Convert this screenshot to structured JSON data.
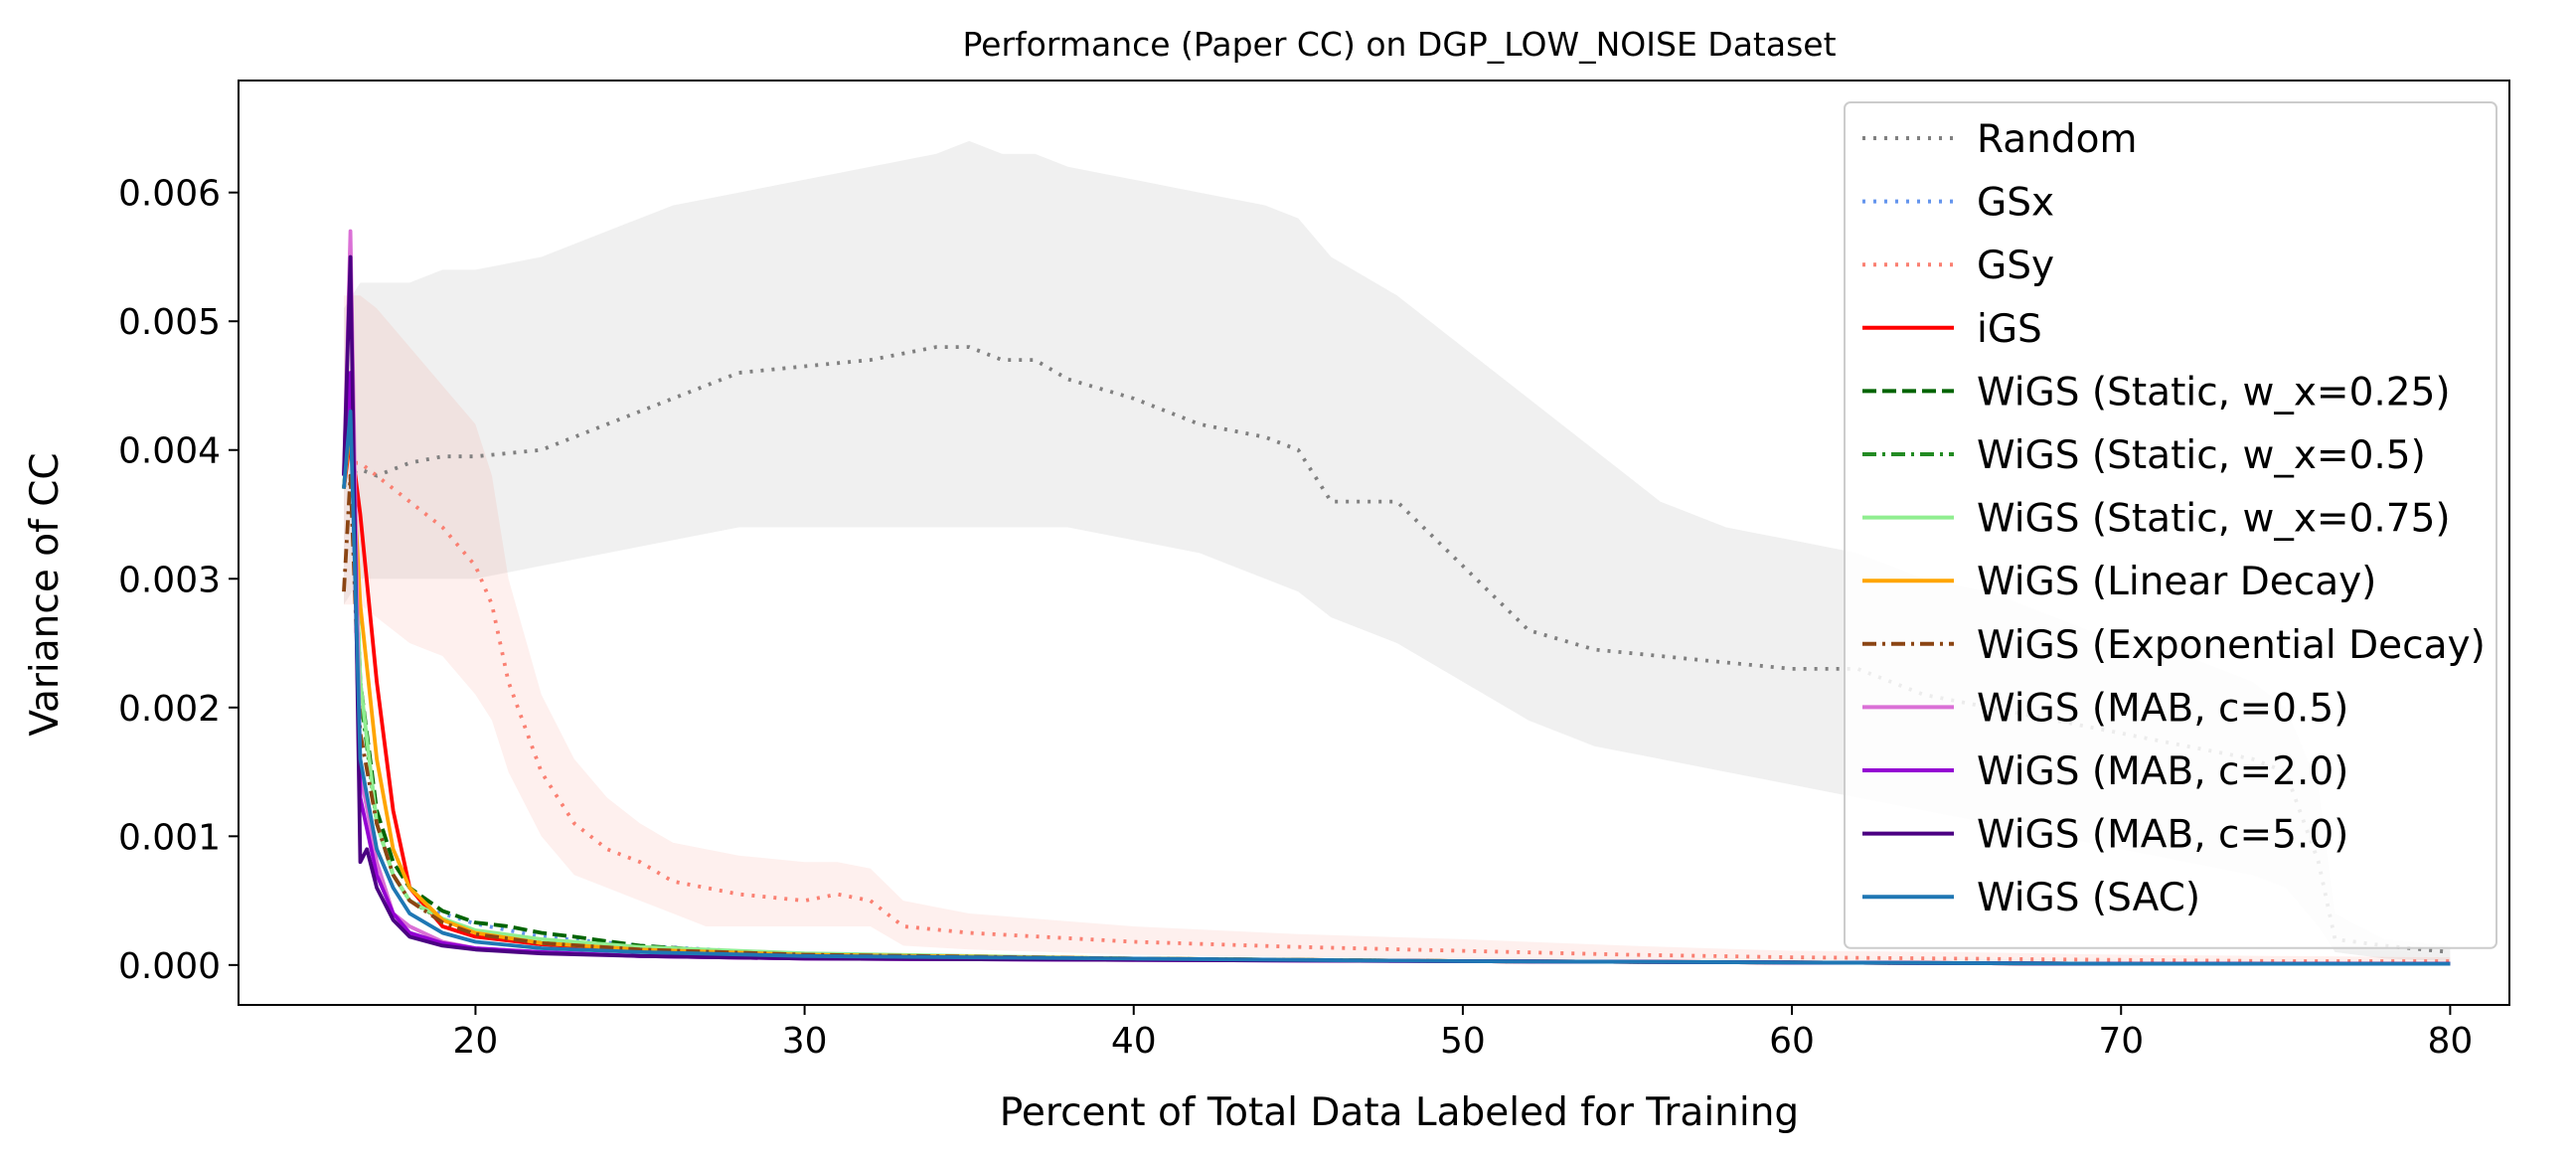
{
  "chart_data": {
    "type": "line",
    "title": "Performance (Paper CC) on DGP_LOW_NOISE Dataset",
    "xlabel": "Percent of Total Data Labeled for Training",
    "ylabel": "Variance of CC",
    "xlim": [
      12.8,
      81.8
    ],
    "ylim": [
      -0.00031,
      0.00687
    ],
    "xticks": [
      20,
      30,
      40,
      50,
      60,
      70,
      80
    ],
    "yticks": [
      0.0,
      0.001,
      0.002,
      0.003,
      0.004,
      0.005,
      0.006
    ],
    "ytick_labels": [
      "0.000",
      "0.001",
      "0.002",
      "0.003",
      "0.004",
      "0.005",
      "0.006"
    ],
    "grid": false,
    "legend_position": "upper right",
    "series": [
      {
        "name": "Random",
        "color": "#808080",
        "style": "dotted",
        "x": [
          16,
          16.5,
          17,
          18,
          19,
          20,
          22,
          24,
          26,
          28,
          30,
          32,
          34,
          35,
          36,
          37,
          38,
          40,
          42,
          44,
          45,
          46,
          48,
          50,
          52,
          54,
          56,
          58,
          60,
          62,
          64,
          66,
          68,
          70,
          72,
          74,
          75,
          76,
          76.5,
          78,
          80
        ],
        "values": [
          0.0038,
          0.00385,
          0.0038,
          0.0039,
          0.00395,
          0.00395,
          0.004,
          0.0042,
          0.0044,
          0.0046,
          0.00465,
          0.0047,
          0.0048,
          0.0048,
          0.0047,
          0.0047,
          0.00455,
          0.0044,
          0.0042,
          0.0041,
          0.004,
          0.0036,
          0.0036,
          0.0031,
          0.0026,
          0.00245,
          0.0024,
          0.00235,
          0.0023,
          0.0023,
          0.0021,
          0.002,
          0.0019,
          0.0018,
          0.0017,
          0.0016,
          0.0015,
          0.0008,
          0.0002,
          0.00015,
          0.0001
        ],
        "band_upper": [
          0.0051,
          0.0053,
          0.0053,
          0.0053,
          0.0054,
          0.0054,
          0.0055,
          0.0057,
          0.0059,
          0.006,
          0.0061,
          0.0062,
          0.0063,
          0.0064,
          0.0063,
          0.0063,
          0.0062,
          0.0061,
          0.006,
          0.0059,
          0.0058,
          0.0055,
          0.0052,
          0.0048,
          0.0044,
          0.004,
          0.0036,
          0.0034,
          0.0033,
          0.0032,
          0.003,
          0.0029,
          0.0027,
          0.0025,
          0.0024,
          0.0022,
          0.002,
          0.0014,
          0.0004,
          0.0002,
          0.00015
        ],
        "band_lower": [
          0.0028,
          0.003,
          0.003,
          0.003,
          0.003,
          0.003,
          0.0031,
          0.0032,
          0.0033,
          0.0034,
          0.0034,
          0.0034,
          0.0034,
          0.0034,
          0.0034,
          0.0034,
          0.0034,
          0.0033,
          0.0032,
          0.003,
          0.0029,
          0.0027,
          0.0025,
          0.0022,
          0.0019,
          0.0017,
          0.0016,
          0.0015,
          0.0014,
          0.0013,
          0.0012,
          0.0011,
          0.001,
          0.0009,
          0.0008,
          0.0007,
          0.0006,
          0.0003,
          0.0001,
          5e-05,
          3e-05
        ]
      },
      {
        "name": "GSx",
        "color": "#6495ED",
        "style": "dotted",
        "x": [
          16,
          16.2,
          16.5,
          17,
          17.5,
          18,
          19,
          20,
          22,
          25,
          30,
          40,
          50,
          60,
          70,
          80
        ],
        "values": [
          0.0037,
          0.0042,
          0.0022,
          0.0011,
          0.0007,
          0.0005,
          0.0004,
          0.00032,
          0.00022,
          0.00015,
          8e-05,
          5e-05,
          3e-05,
          2e-05,
          1e-05,
          1e-05
        ]
      },
      {
        "name": "GSy",
        "color": "#FA8072",
        "style": "dotted",
        "x": [
          16,
          16.5,
          17,
          18,
          19,
          20,
          20.5,
          21,
          22,
          23,
          24,
          25,
          26,
          27,
          28,
          30,
          31,
          32,
          33,
          35,
          40,
          45,
          50,
          55,
          60,
          65,
          70,
          75,
          80
        ],
        "values": [
          0.0039,
          0.0039,
          0.0038,
          0.0036,
          0.0034,
          0.0031,
          0.0028,
          0.0022,
          0.0015,
          0.0011,
          0.0009,
          0.0008,
          0.00065,
          0.0006,
          0.00055,
          0.0005,
          0.00055,
          0.0005,
          0.0003,
          0.00025,
          0.00018,
          0.00014,
          0.00011,
          8e-05,
          6e-05,
          5e-05,
          4e-05,
          3e-05,
          3e-05
        ],
        "band_upper": [
          0.0052,
          0.0052,
          0.0051,
          0.0048,
          0.0045,
          0.0042,
          0.0038,
          0.003,
          0.0021,
          0.0016,
          0.0013,
          0.0011,
          0.00095,
          0.0009,
          0.00085,
          0.0008,
          0.0008,
          0.00075,
          0.0005,
          0.0004,
          0.0003,
          0.00024,
          0.0002,
          0.00015,
          0.00011,
          0.0001,
          8e-05,
          7e-05,
          6e-05
        ],
        "band_lower": [
          0.0028,
          0.0028,
          0.0027,
          0.0025,
          0.0024,
          0.0021,
          0.0019,
          0.0015,
          0.001,
          0.0007,
          0.0006,
          0.0005,
          0.0004,
          0.0003,
          0.0003,
          0.0003,
          0.0003,
          0.0003,
          0.00015,
          0.00012,
          8e-05,
          6e-05,
          4e-05,
          3e-05,
          2e-05,
          2e-05,
          1e-05,
          1e-05,
          1e-05
        ]
      },
      {
        "name": "iGS",
        "color": "#FF0000",
        "style": "solid",
        "x": [
          16,
          16.2,
          16.5,
          17,
          17.5,
          18,
          19,
          20,
          22,
          25,
          30,
          40,
          50,
          60,
          70,
          80
        ],
        "values": [
          0.0037,
          0.0041,
          0.0035,
          0.0022,
          0.0012,
          0.0006,
          0.0003,
          0.00022,
          0.00016,
          0.00012,
          8e-05,
          5e-05,
          3e-05,
          2e-05,
          1e-05,
          1e-05
        ]
      },
      {
        "name": "WiGS (Static, w_x=0.25)",
        "color": "#006400",
        "style": "dashed",
        "x": [
          16,
          16.2,
          16.5,
          17,
          17.5,
          18,
          19,
          20,
          21,
          22,
          23,
          25,
          28,
          30,
          35,
          40,
          50,
          60,
          70,
          80
        ],
        "values": [
          0.0037,
          0.0043,
          0.0022,
          0.0012,
          0.0008,
          0.0006,
          0.00042,
          0.00033,
          0.0003,
          0.00025,
          0.00022,
          0.00015,
          0.0001,
          8e-05,
          6e-05,
          5e-05,
          3e-05,
          2e-05,
          1e-05,
          1e-05
        ]
      },
      {
        "name": "WiGS (Static, w_x=0.5)",
        "color": "#228B22",
        "style": "dashdot",
        "x": [
          16,
          16.2,
          16.5,
          17,
          17.5,
          18,
          19,
          20,
          22,
          25,
          30,
          40,
          50,
          60,
          70,
          80
        ],
        "values": [
          0.0037,
          0.0043,
          0.0021,
          0.0011,
          0.0007,
          0.0005,
          0.00035,
          0.00026,
          0.00019,
          0.00013,
          8e-05,
          5e-05,
          3e-05,
          2e-05,
          1e-05,
          1e-05
        ]
      },
      {
        "name": "WiGS (Static, w_x=0.75)",
        "color": "#90EE90",
        "style": "solid",
        "x": [
          16,
          16.2,
          16.5,
          17,
          17.5,
          18,
          19,
          20,
          22,
          25,
          30,
          40,
          50,
          60,
          70,
          80
        ],
        "values": [
          0.0037,
          0.0044,
          0.0022,
          0.0011,
          0.0007,
          0.0005,
          0.00036,
          0.00027,
          0.0002,
          0.00014,
          9e-05,
          5e-05,
          3e-05,
          2e-05,
          1e-05,
          1e-05
        ]
      },
      {
        "name": "WiGS (Linear Decay)",
        "color": "#FFA500",
        "style": "solid",
        "x": [
          16,
          16.2,
          16.5,
          17,
          17.5,
          18,
          19,
          20,
          22,
          25,
          30,
          40,
          50,
          60,
          70,
          80
        ],
        "values": [
          0.0037,
          0.0042,
          0.0028,
          0.0016,
          0.0009,
          0.0006,
          0.00035,
          0.00025,
          0.00017,
          0.00012,
          8e-05,
          5e-05,
          3e-05,
          2e-05,
          1e-05,
          1e-05
        ]
      },
      {
        "name": "WiGS (Exponential Decay)",
        "color": "#8B4513",
        "style": "dashdot",
        "x": [
          16,
          16.2,
          16.5,
          17,
          17.5,
          18,
          19,
          20,
          22,
          25,
          30,
          40,
          50,
          60,
          70,
          80
        ],
        "values": [
          0.0029,
          0.0038,
          0.0018,
          0.0011,
          0.0007,
          0.0005,
          0.00033,
          0.00024,
          0.00017,
          0.00012,
          8e-05,
          5e-05,
          3e-05,
          2e-05,
          1e-05,
          1e-05
        ]
      },
      {
        "name": "WiGS (MAB, c=0.5)",
        "color": "#DA70D6",
        "style": "solid",
        "x": [
          16,
          16.2,
          16.5,
          17,
          17.5,
          18,
          19,
          20,
          22,
          25,
          30,
          40,
          50,
          60,
          70,
          80
        ],
        "values": [
          0.0038,
          0.0057,
          0.0015,
          0.0008,
          0.0004,
          0.0003,
          0.00018,
          0.00013,
          0.0001,
          7e-05,
          5e-05,
          4e-05,
          3e-05,
          2e-05,
          1e-05,
          1e-05
        ]
      },
      {
        "name": "WiGS (MAB, c=2.0)",
        "color": "#9400D3",
        "style": "solid",
        "x": [
          16,
          16.2,
          16.5,
          17,
          17.5,
          18,
          19,
          20,
          22,
          25,
          30,
          40,
          50,
          60,
          70,
          80
        ],
        "values": [
          0.0038,
          0.0046,
          0.0013,
          0.0007,
          0.0004,
          0.00025,
          0.00017,
          0.00013,
          0.0001,
          7e-05,
          5e-05,
          4e-05,
          3e-05,
          2e-05,
          1e-05,
          1e-05
        ]
      },
      {
        "name": "WiGS (MAB, c=5.0)",
        "color": "#4B0082",
        "style": "solid",
        "x": [
          16,
          16.2,
          16.5,
          16.7,
          17,
          17.5,
          18,
          19,
          20,
          22,
          25,
          30,
          40,
          50,
          60,
          70,
          80
        ],
        "values": [
          0.0038,
          0.0055,
          0.0008,
          0.0009,
          0.0006,
          0.00035,
          0.00022,
          0.00015,
          0.00012,
          9e-05,
          7e-05,
          5e-05,
          4e-05,
          3e-05,
          2e-05,
          1e-05,
          1e-05
        ]
      },
      {
        "name": "WiGS (SAC)",
        "color": "#1F77B4",
        "style": "solid",
        "x": [
          16,
          16.2,
          16.5,
          17,
          17.5,
          18,
          19,
          20,
          22,
          25,
          30,
          40,
          50,
          60,
          70,
          80
        ],
        "values": [
          0.0037,
          0.0043,
          0.0016,
          0.0009,
          0.0006,
          0.0004,
          0.00025,
          0.00018,
          0.00013,
          0.0001,
          7e-05,
          5e-05,
          3e-05,
          2e-05,
          1e-05,
          1e-05
        ]
      }
    ]
  }
}
